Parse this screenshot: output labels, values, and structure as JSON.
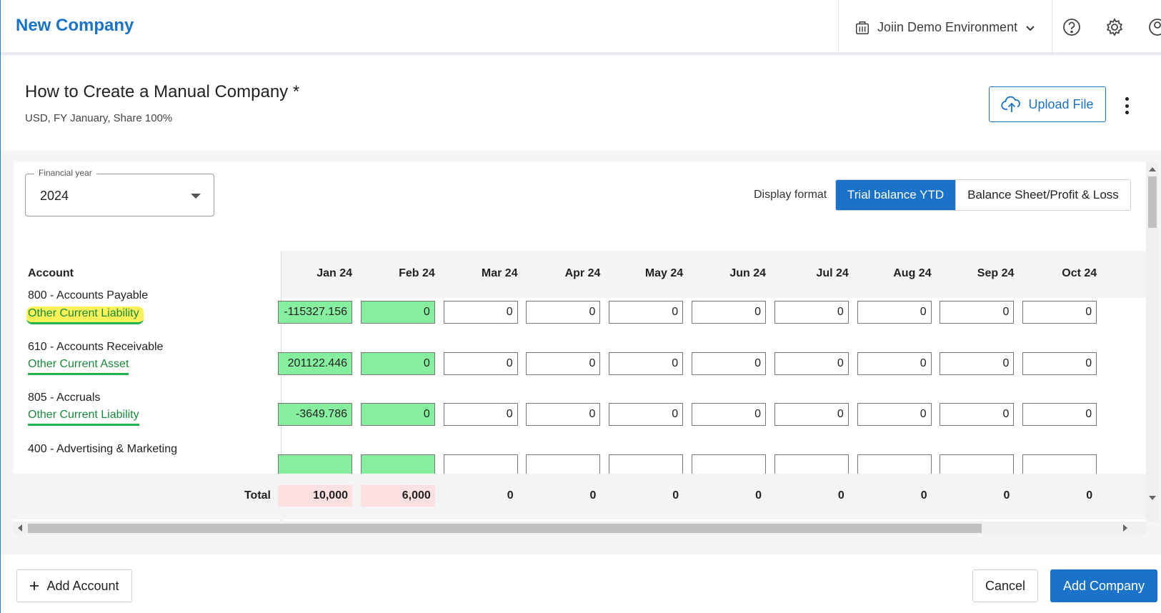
{
  "header": {
    "brand": "New Company",
    "environment": "Joiin Demo Environment",
    "icons": [
      "building-icon",
      "chevron-down-icon",
      "help-icon",
      "gear-icon",
      "user-icon"
    ]
  },
  "page": {
    "title": "How to Create a Manual Company *",
    "subtitle": "USD, FY January, Share 100%",
    "upload_label": "Upload File"
  },
  "filters": {
    "financial_year_label": "Financial year",
    "financial_year_value": "2024",
    "display_format_label": "Display format",
    "format_options": [
      "Trial balance YTD",
      "Balance Sheet/Profit & Loss"
    ],
    "selected_format": "Trial balance YTD"
  },
  "table": {
    "account_header": "Account",
    "months": [
      "Jan 24",
      "Feb 24",
      "Mar 24",
      "Apr 24",
      "May 24",
      "Jun 24",
      "Jul 24",
      "Aug 24",
      "Sep 24",
      "Oct 24"
    ],
    "rows": [
      {
        "name": "800 - Accounts Payable",
        "type": "Other Current Liability",
        "highlighted": true,
        "values": [
          "-115327.156",
          "0",
          "0",
          "0",
          "0",
          "0",
          "0",
          "0",
          "0",
          "0"
        ]
      },
      {
        "name": "610 - Accounts Receivable",
        "type": "Other Current Asset",
        "highlighted": false,
        "values": [
          "201122.446",
          "0",
          "0",
          "0",
          "0",
          "0",
          "0",
          "0",
          "0",
          "0"
        ]
      },
      {
        "name": "805 - Accruals",
        "type": "Other Current Liability",
        "highlighted": false,
        "values": [
          "-3649.786",
          "0",
          "0",
          "0",
          "0",
          "0",
          "0",
          "0",
          "0",
          "0"
        ]
      },
      {
        "name": "400 - Advertising & Marketing",
        "type": "",
        "highlighted": false,
        "values": [
          "",
          "",
          "",
          "",
          "",
          "",
          "",
          "",
          "",
          ""
        ]
      }
    ],
    "total_label": "Total",
    "totals": [
      "10,000",
      "6,000",
      "0",
      "0",
      "0",
      "0",
      "0",
      "0",
      "0",
      "0"
    ]
  },
  "footer": {
    "add_account_label": "Add Account",
    "cancel_label": "Cancel",
    "add_company_label": "Add Company"
  },
  "colors": {
    "primary": "#1a73c9",
    "editable_cell": "#86ee9f",
    "total_mismatch": "#fde0e0",
    "account_type": "#188a3a",
    "highlight": "#fbf25a"
  }
}
